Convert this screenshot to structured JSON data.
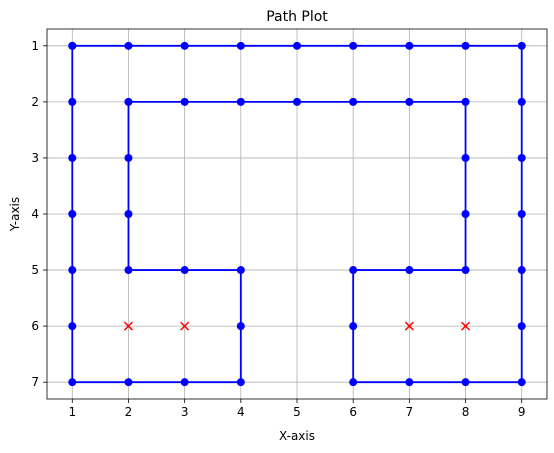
{
  "chart_data": {
    "type": "line",
    "title": "Path Plot",
    "xlabel": "X-axis",
    "ylabel": "Y-axis",
    "xlim": [
      0.55,
      9.45
    ],
    "ylim": [
      7.3,
      0.7
    ],
    "y_inverted": true,
    "grid": true,
    "xticks": [
      1,
      2,
      3,
      4,
      5,
      6,
      7,
      8,
      9
    ],
    "yticks": [
      1,
      2,
      3,
      4,
      5,
      6,
      7
    ],
    "series": [
      {
        "color": "#0000ff",
        "marker": "circle",
        "points": [
          [
            1,
            1
          ],
          [
            2,
            1
          ],
          [
            3,
            1
          ],
          [
            4,
            1
          ],
          [
            5,
            1
          ],
          [
            6,
            1
          ],
          [
            7,
            1
          ],
          [
            8,
            1
          ],
          [
            9,
            1
          ],
          [
            9,
            2
          ],
          [
            9,
            3
          ],
          [
            9,
            4
          ],
          [
            9,
            5
          ],
          [
            9,
            6
          ],
          [
            9,
            7
          ],
          [
            8,
            7
          ],
          [
            7,
            7
          ],
          [
            6,
            7
          ],
          [
            6,
            6
          ],
          [
            6,
            5
          ],
          [
            7,
            5
          ],
          [
            8,
            5
          ],
          [
            8,
            4
          ],
          [
            8,
            3
          ],
          [
            8,
            2
          ],
          [
            7,
            2
          ],
          [
            6,
            2
          ],
          [
            5,
            2
          ],
          [
            4,
            2
          ],
          [
            3,
            2
          ],
          [
            2,
            2
          ],
          [
            2,
            3
          ],
          [
            2,
            4
          ],
          [
            2,
            5
          ],
          [
            3,
            5
          ],
          [
            4,
            5
          ],
          [
            4,
            6
          ],
          [
            4,
            7
          ],
          [
            3,
            7
          ],
          [
            2,
            7
          ],
          [
            1,
            7
          ],
          [
            1,
            6
          ],
          [
            1,
            5
          ],
          [
            1,
            4
          ],
          [
            1,
            3
          ],
          [
            1,
            2
          ],
          [
            1,
            1
          ]
        ]
      },
      {
        "color": "#ff0000",
        "marker": "x",
        "points": [
          [
            2,
            6
          ],
          [
            3,
            6
          ],
          [
            7,
            6
          ],
          [
            8,
            6
          ]
        ]
      }
    ]
  }
}
